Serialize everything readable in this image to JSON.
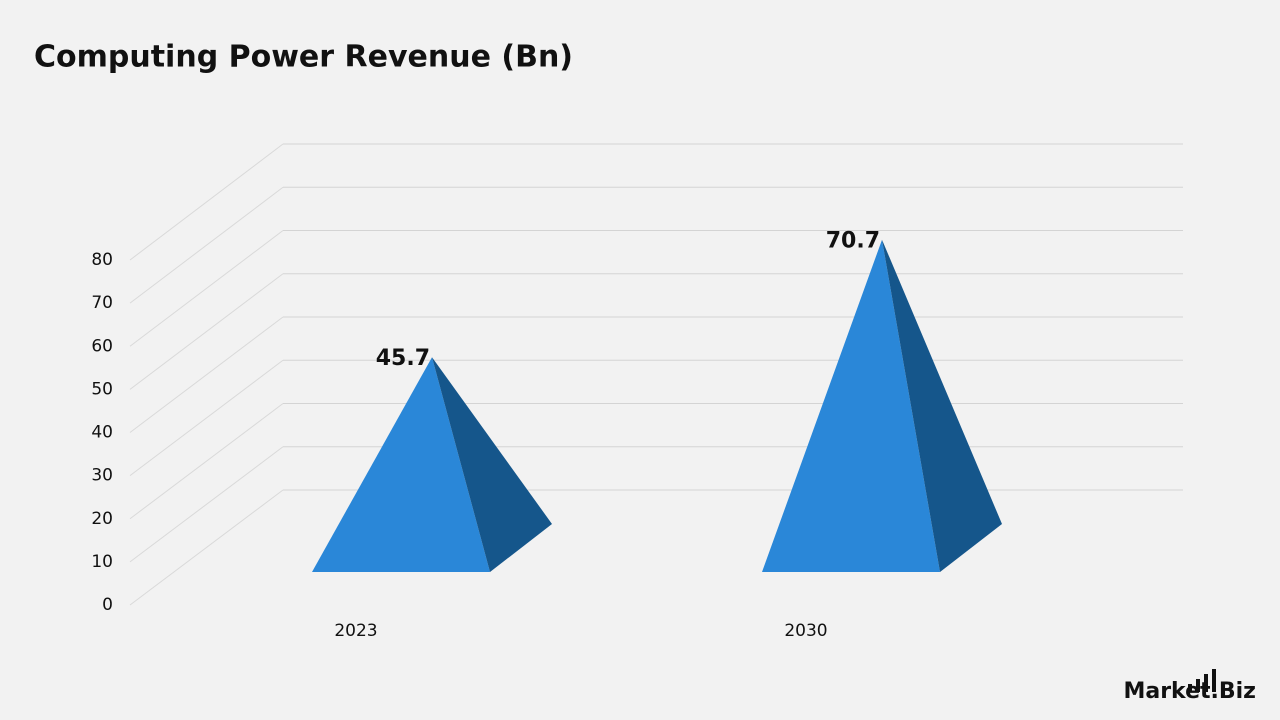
{
  "chart_data": {
    "type": "pyramid",
    "title": "Computing Power Revenue (Bn)",
    "categories": [
      "2023",
      "2030"
    ],
    "values": [
      45.7,
      70.7
    ],
    "color": "#2a87d8",
    "side_color": "#15568b",
    "ylim": [
      0,
      80
    ],
    "yticks": [
      0,
      10,
      20,
      30,
      40,
      50,
      60,
      70,
      80
    ],
    "grid": true
  },
  "watermark": "Market.Biz"
}
